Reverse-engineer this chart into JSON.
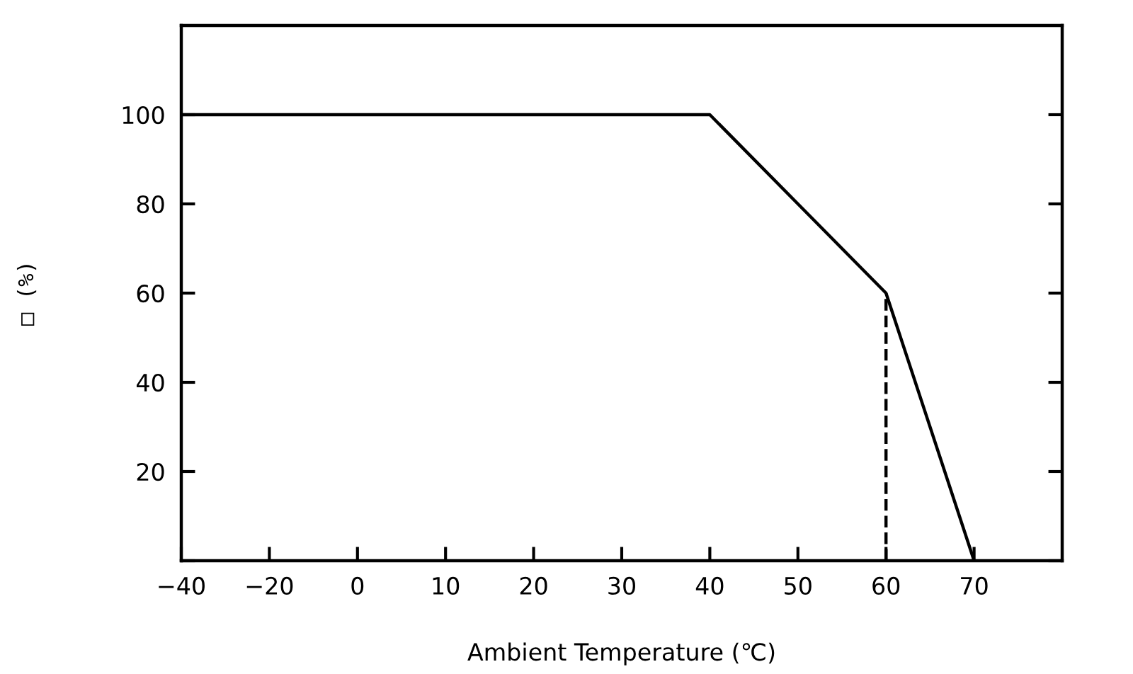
{
  "chart_data": {
    "type": "line",
    "xlabel": "Ambient Temperature (℃)",
    "ylabel": "□ (%)",
    "categories": [
      "−40",
      "−20",
      "0",
      "10",
      "20",
      "30",
      "40",
      "50",
      "60",
      "70"
    ],
    "series": [
      {
        "color": "#000000",
        "values": [
          100,
          100,
          100,
          100,
          100,
          100,
          100,
          80,
          60,
          0
        ]
      }
    ],
    "ylim": [
      0,
      120
    ],
    "yticks": [
      {
        "value": 0,
        "label": null
      },
      20,
      40,
      60,
      80,
      100
    ],
    "ref_lines": [
      {
        "axis": "x",
        "value": "60",
        "line_style": "dashed",
        "color": "#000000"
      }
    ],
    "grid": false,
    "legend": false,
    "marker": "none",
    "line_style": "solid"
  }
}
